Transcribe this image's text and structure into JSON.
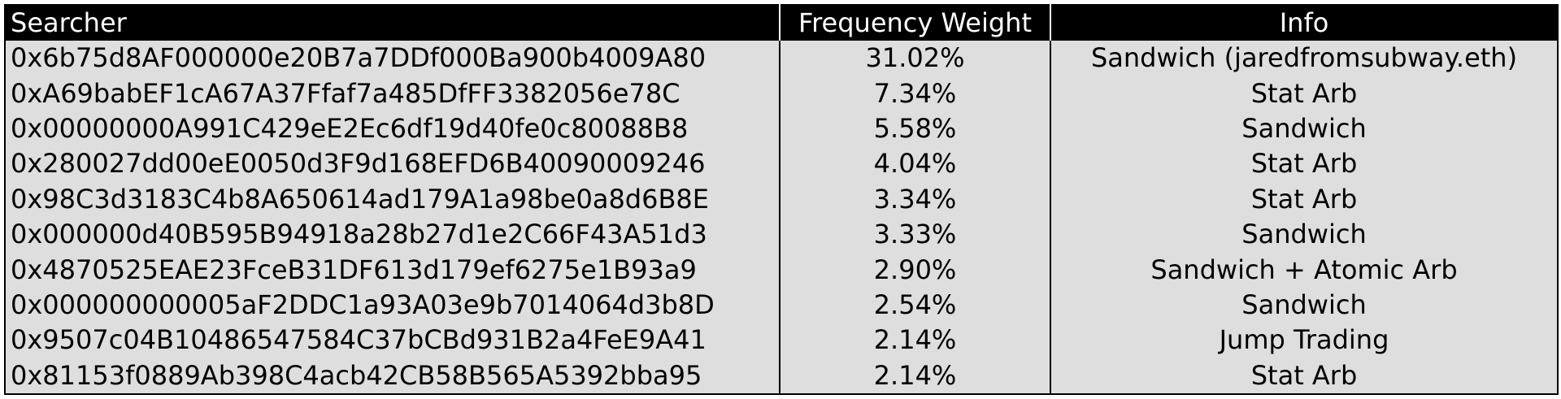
{
  "table": {
    "headers": {
      "searcher": "Searcher",
      "frequency": "Frequency Weight",
      "info": "Info"
    },
    "rows": [
      {
        "searcher": "0x6b75d8AF000000e20B7a7DDf000Ba900b4009A80",
        "frequency": "31.02%",
        "info": "Sandwich (jaredfromsubway.eth)"
      },
      {
        "searcher": "0xA69babEF1cA67A37Ffaf7a485DfFF3382056e78C",
        "frequency": "7.34%",
        "info": "Stat Arb"
      },
      {
        "searcher": "0x00000000A991C429eE2Ec6df19d40fe0c80088B8",
        "frequency": "5.58%",
        "info": "Sandwich"
      },
      {
        "searcher": "0x280027dd00eE0050d3F9d168EFD6B40090009246",
        "frequency": "4.04%",
        "info": "Stat Arb"
      },
      {
        "searcher": "0x98C3d3183C4b8A650614ad179A1a98be0a8d6B8E",
        "frequency": "3.34%",
        "info": "Stat Arb"
      },
      {
        "searcher": "0x000000d40B595B94918a28b27d1e2C66F43A51d3",
        "frequency": "3.33%",
        "info": "Sandwich"
      },
      {
        "searcher": "0x4870525EAE23FceB31DF613d179ef6275e1B93a9",
        "frequency": "2.90%",
        "info": "Sandwich + Atomic Arb"
      },
      {
        "searcher": "0x000000000005aF2DDC1a93A03e9b7014064d3b8D",
        "frequency": "2.54%",
        "info": "Sandwich"
      },
      {
        "searcher": "0x9507c04B10486547584C37bCBd931B2a4FeE9A41",
        "frequency": "2.14%",
        "info": "Jump Trading"
      },
      {
        "searcher": "0x81153f0889Ab398C4acb42CB58B565A5392bba95",
        "frequency": "2.14%",
        "info": "Stat Arb"
      }
    ]
  }
}
